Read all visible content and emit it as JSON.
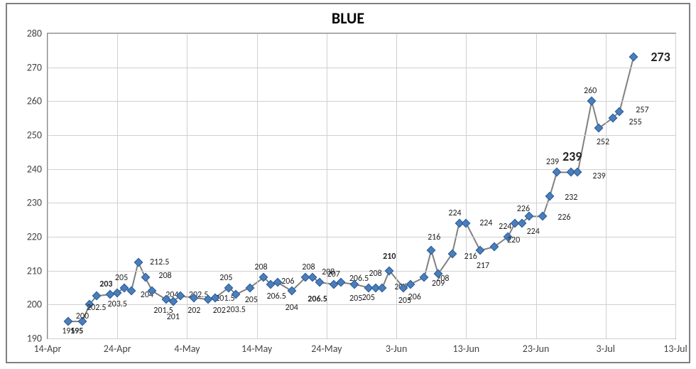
{
  "chart": {
    "type": "line",
    "title": "BLUE",
    "title_fontsize": 22,
    "background_color": "#ffffff",
    "frame_border_color": "#808080",
    "grid_color": "#d0d0d0",
    "axis_color": "#888888",
    "tick_font_color": "#444444",
    "tick_fontsize": 14,
    "label_fontsize": 12,
    "label_big_fontsize": 18,
    "line_color": "#808080",
    "line_width": 2,
    "marker_color": "#4a7ebb",
    "marker_border": "#2a5a96",
    "marker_style": "diamond",
    "marker_size": 7,
    "y": {
      "min": 190,
      "max": 280,
      "step": 10
    },
    "x": {
      "min": 0,
      "max": 90,
      "ticks": [
        0,
        10,
        20,
        30,
        40,
        50,
        60,
        70,
        80,
        90
      ],
      "tick_labels": [
        "14-Apr",
        "24-Apr",
        "4-May",
        "14-May",
        "24-May",
        "3-Jun",
        "13-Jun",
        "23-Jun",
        "3-Jul",
        "13-Jul"
      ]
    },
    "series": [
      {
        "x": 3,
        "y": 195,
        "v": "195",
        "lp": "s"
      },
      {
        "x": 5,
        "y": 195,
        "v": "195",
        "lp": "s",
        "bold": true,
        "lxoff": -8
      },
      {
        "x": 6,
        "y": 200,
        "v": "200",
        "lp": "s",
        "lxoff": -10,
        "lyoff": 3
      },
      {
        "x": 7,
        "y": 202.5,
        "v": "202.5",
        "lp": "s",
        "lyoff": 3
      },
      {
        "x": 9,
        "y": 203,
        "v": "203",
        "lp": "n",
        "bold": true,
        "lxoff": -6
      },
      {
        "x": 10,
        "y": 203.5,
        "v": "203.5",
        "lp": "s",
        "lyoff": 2
      },
      {
        "x": 11,
        "y": 205,
        "v": "205",
        "lp": "n",
        "lxoff": -4
      },
      {
        "x": 12,
        "y": 204,
        "v": "204",
        "lp": "e",
        "lxoff": 4,
        "lyoff": 6
      },
      {
        "x": 13,
        "y": 212.5,
        "v": "212.5",
        "lp": "e",
        "lxoff": 12
      },
      {
        "x": 14,
        "y": 208,
        "v": "208",
        "lp": "e",
        "lxoff": 10,
        "lyoff": -2
      },
      {
        "x": 15,
        "y": 204,
        "v": "204",
        "lp": "e",
        "lxoff": 10,
        "lyoff": 6
      },
      {
        "x": 17,
        "y": 201.5,
        "v": "201.5",
        "lp": "s",
        "lxoff": -4,
        "lyoff": 2
      },
      {
        "x": 18,
        "y": 201,
        "v": "201",
        "lp": "s",
        "lyoff": 8
      },
      {
        "x": 19,
        "y": 202.5,
        "v": "202.5",
        "lp": "e",
        "lxoff": 8,
        "lyoff": -1
      },
      {
        "x": 21,
        "y": 202,
        "v": "202",
        "lp": "s",
        "lyoff": 4
      },
      {
        "x": 23,
        "y": 201.5,
        "v": "201.5",
        "lp": "e",
        "lxoff": 6,
        "lyoff": -1
      },
      {
        "x": 24,
        "y": 202,
        "v": "202",
        "lp": "s",
        "lxoff": 6,
        "lyoff": 4
      },
      {
        "x": 26,
        "y": 205,
        "v": "205",
        "lp": "n",
        "lxoff": -4
      },
      {
        "x": 27,
        "y": 203,
        "v": "203.5",
        "lp": "s",
        "lyoff": 8
      },
      {
        "x": 29,
        "y": 205,
        "v": "205",
        "lp": "s",
        "lxoff": 2,
        "lyoff": 3
      },
      {
        "x": 31,
        "y": 208,
        "v": "208",
        "lp": "n",
        "lxoff": -4,
        "lyoff": 0
      },
      {
        "x": 32,
        "y": 206,
        "v": "206",
        "lp": "e",
        "lxoff": 6,
        "lyoff": -4
      },
      {
        "x": 33,
        "y": 206.5,
        "v": "206.5",
        "lp": "s",
        "lxoff": -2,
        "lyoff": 6
      },
      {
        "x": 35,
        "y": 204,
        "v": "204",
        "lp": "s",
        "lyoff": 10
      },
      {
        "x": 37,
        "y": 208,
        "v": "208",
        "lp": "n",
        "lxoff": 4
      },
      {
        "x": 38,
        "y": 208,
        "v": "208",
        "lp": "e",
        "lxoff": 4,
        "lyoff": -7
      },
      {
        "x": 39,
        "y": 206.5,
        "v": "206.5",
        "lp": "s",
        "lxoff": -3,
        "lyoff": 10,
        "bold": true
      },
      {
        "x": 41,
        "y": 206,
        "v": "207",
        "lp": "n",
        "lxoff": 0
      },
      {
        "x": 42,
        "y": 206.5,
        "v": "206.5",
        "lp": "e",
        "lxoff": 8,
        "lyoff": -5
      },
      {
        "x": 44,
        "y": 206,
        "v": "205",
        "lp": "s",
        "lxoff": 2,
        "lyoff": 6
      },
      {
        "x": 46,
        "y": 205,
        "v": "205",
        "lp": "s"
      },
      {
        "x": 47,
        "y": 205,
        "v": "208",
        "lp": "n",
        "lxoff": 0,
        "lyoff": -6
      },
      {
        "x": 48,
        "y": 205,
        "v": "206",
        "lp": "e",
        "lxoff": 8,
        "lyoff": -1
      },
      {
        "x": 49,
        "y": 210,
        "v": "210",
        "lp": "n",
        "lxoff": 0,
        "bold": true,
        "lyoff": -6
      },
      {
        "x": 51,
        "y": 205,
        "v": "205",
        "lp": "s",
        "lxoff": 2,
        "lyoff": 4
      },
      {
        "x": 52,
        "y": 206,
        "v": "206",
        "lp": "s",
        "lxoff": 6,
        "lyoff": 4
      },
      {
        "x": 54,
        "y": 208,
        "v": "208",
        "lp": "e",
        "lxoff": 8,
        "lyoff": 2
      },
      {
        "x": 55,
        "y": 216,
        "v": "216",
        "lp": "n",
        "lxoff": 4,
        "lyoff": -4
      },
      {
        "x": 56,
        "y": 209,
        "v": "209",
        "lp": "s"
      },
      {
        "x": 58,
        "y": 215,
        "v": "216",
        "lp": "e",
        "lxoff": 8,
        "lyoff": 4
      },
      {
        "x": 59,
        "y": 224,
        "v": "224",
        "lp": "n",
        "lxoff": -6
      },
      {
        "x": 60,
        "y": 224,
        "v": "224",
        "lp": "e",
        "lxoff": 10
      },
      {
        "x": 62,
        "y": 216,
        "v": "217",
        "lp": "s",
        "lxoff": 4,
        "lyoff": 8
      },
      {
        "x": 64,
        "y": 217,
        "v": ""
      },
      {
        "x": 66,
        "y": 220,
        "v": "224",
        "lp": "n",
        "lxoff": -4
      },
      {
        "x": 67,
        "y": 224,
        "v": "220",
        "lp": "s",
        "lxoff": -2,
        "lyoff": 10
      },
      {
        "x": 68,
        "y": 224,
        "v": "226",
        "lp": "n",
        "lxoff": 2,
        "lyoff": -6
      },
      {
        "x": 69,
        "y": 226,
        "v": "224",
        "lp": "s",
        "lxoff": 6,
        "lyoff": 8
      },
      {
        "x": 71,
        "y": 226,
        "v": "226",
        "lp": "e",
        "lxoff": 12,
        "lyoff": 2
      },
      {
        "x": 72,
        "y": 232,
        "v": "232",
        "lp": "e",
        "lxoff": 12,
        "lyoff": 2
      },
      {
        "x": 73,
        "y": 239,
        "v": "239",
        "lp": "n",
        "lxoff": -6
      },
      {
        "x": 75,
        "y": 239,
        "v": "239",
        "lp": "n",
        "big": true,
        "lxoff": 2,
        "lyoff": -8
      },
      {
        "x": 76,
        "y": 239,
        "v": "239",
        "lp": "e",
        "lxoff": 12,
        "lyoff": 6
      },
      {
        "x": 78,
        "y": 260,
        "v": "260",
        "lp": "n",
        "lxoff": -2
      },
      {
        "x": 79,
        "y": 252,
        "v": "252",
        "lp": "s",
        "lxoff": 6,
        "lyoff": 6
      },
      {
        "x": 81,
        "y": 255,
        "v": "255",
        "lp": "e",
        "lxoff": 14,
        "lyoff": 6
      },
      {
        "x": 82,
        "y": 257,
        "v": "257",
        "lp": "e",
        "lxoff": 14,
        "lyoff": -2
      },
      {
        "x": 84,
        "y": 273,
        "v": "273",
        "lp": "e",
        "big": true,
        "lxoff": 20
      }
    ]
  }
}
